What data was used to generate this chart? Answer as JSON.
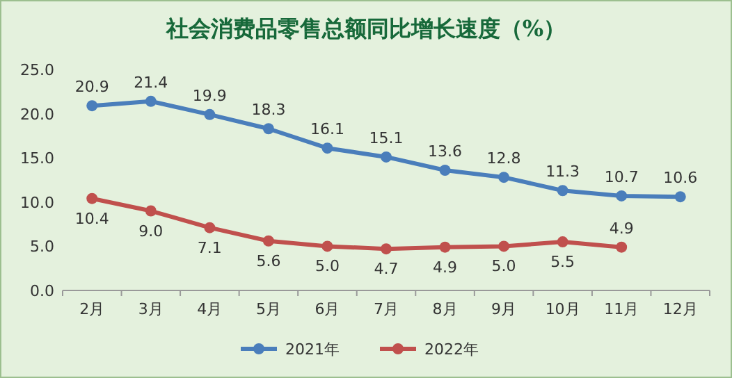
{
  "chart_data": {
    "type": "line",
    "title": "社会消费品零售总额同比增长速度（%）",
    "categories": [
      "2月",
      "3月",
      "4月",
      "5月",
      "6月",
      "7月",
      "8月",
      "9月",
      "10月",
      "11月",
      "12月"
    ],
    "series": [
      {
        "name": "2021年",
        "color": "#4a7ebb",
        "values": [
          20.9,
          21.4,
          19.9,
          18.3,
          16.1,
          15.1,
          13.6,
          12.8,
          11.3,
          10.7,
          10.6
        ],
        "value_labels": [
          "20.9",
          "21.4",
          "19.9",
          "18.3",
          "16.1",
          "15.1",
          "13.6",
          "12.8",
          "11.3",
          "10.7",
          "10.6"
        ]
      },
      {
        "name": "2022年",
        "color": "#c0504d",
        "values": [
          10.4,
          9.0,
          7.1,
          5.6,
          5.0,
          4.7,
          4.9,
          5.0,
          5.5,
          4.9,
          null
        ],
        "value_labels": [
          "10.4",
          "9.0",
          "7.1",
          "5.6",
          "5.0",
          "4.7",
          "4.9",
          "5.0",
          "5.5",
          "4.9",
          null
        ]
      }
    ],
    "ylim": [
      0,
      25
    ],
    "yticks": [
      {
        "value": 0,
        "label": "0.0"
      },
      {
        "value": 5,
        "label": "5.0"
      },
      {
        "value": 10,
        "label": "10.0"
      },
      {
        "value": 15,
        "label": "15.0"
      },
      {
        "value": 20,
        "label": "20.0"
      },
      {
        "value": 25,
        "label": "25.0"
      }
    ],
    "marker": "circle",
    "legend": "bottom"
  }
}
